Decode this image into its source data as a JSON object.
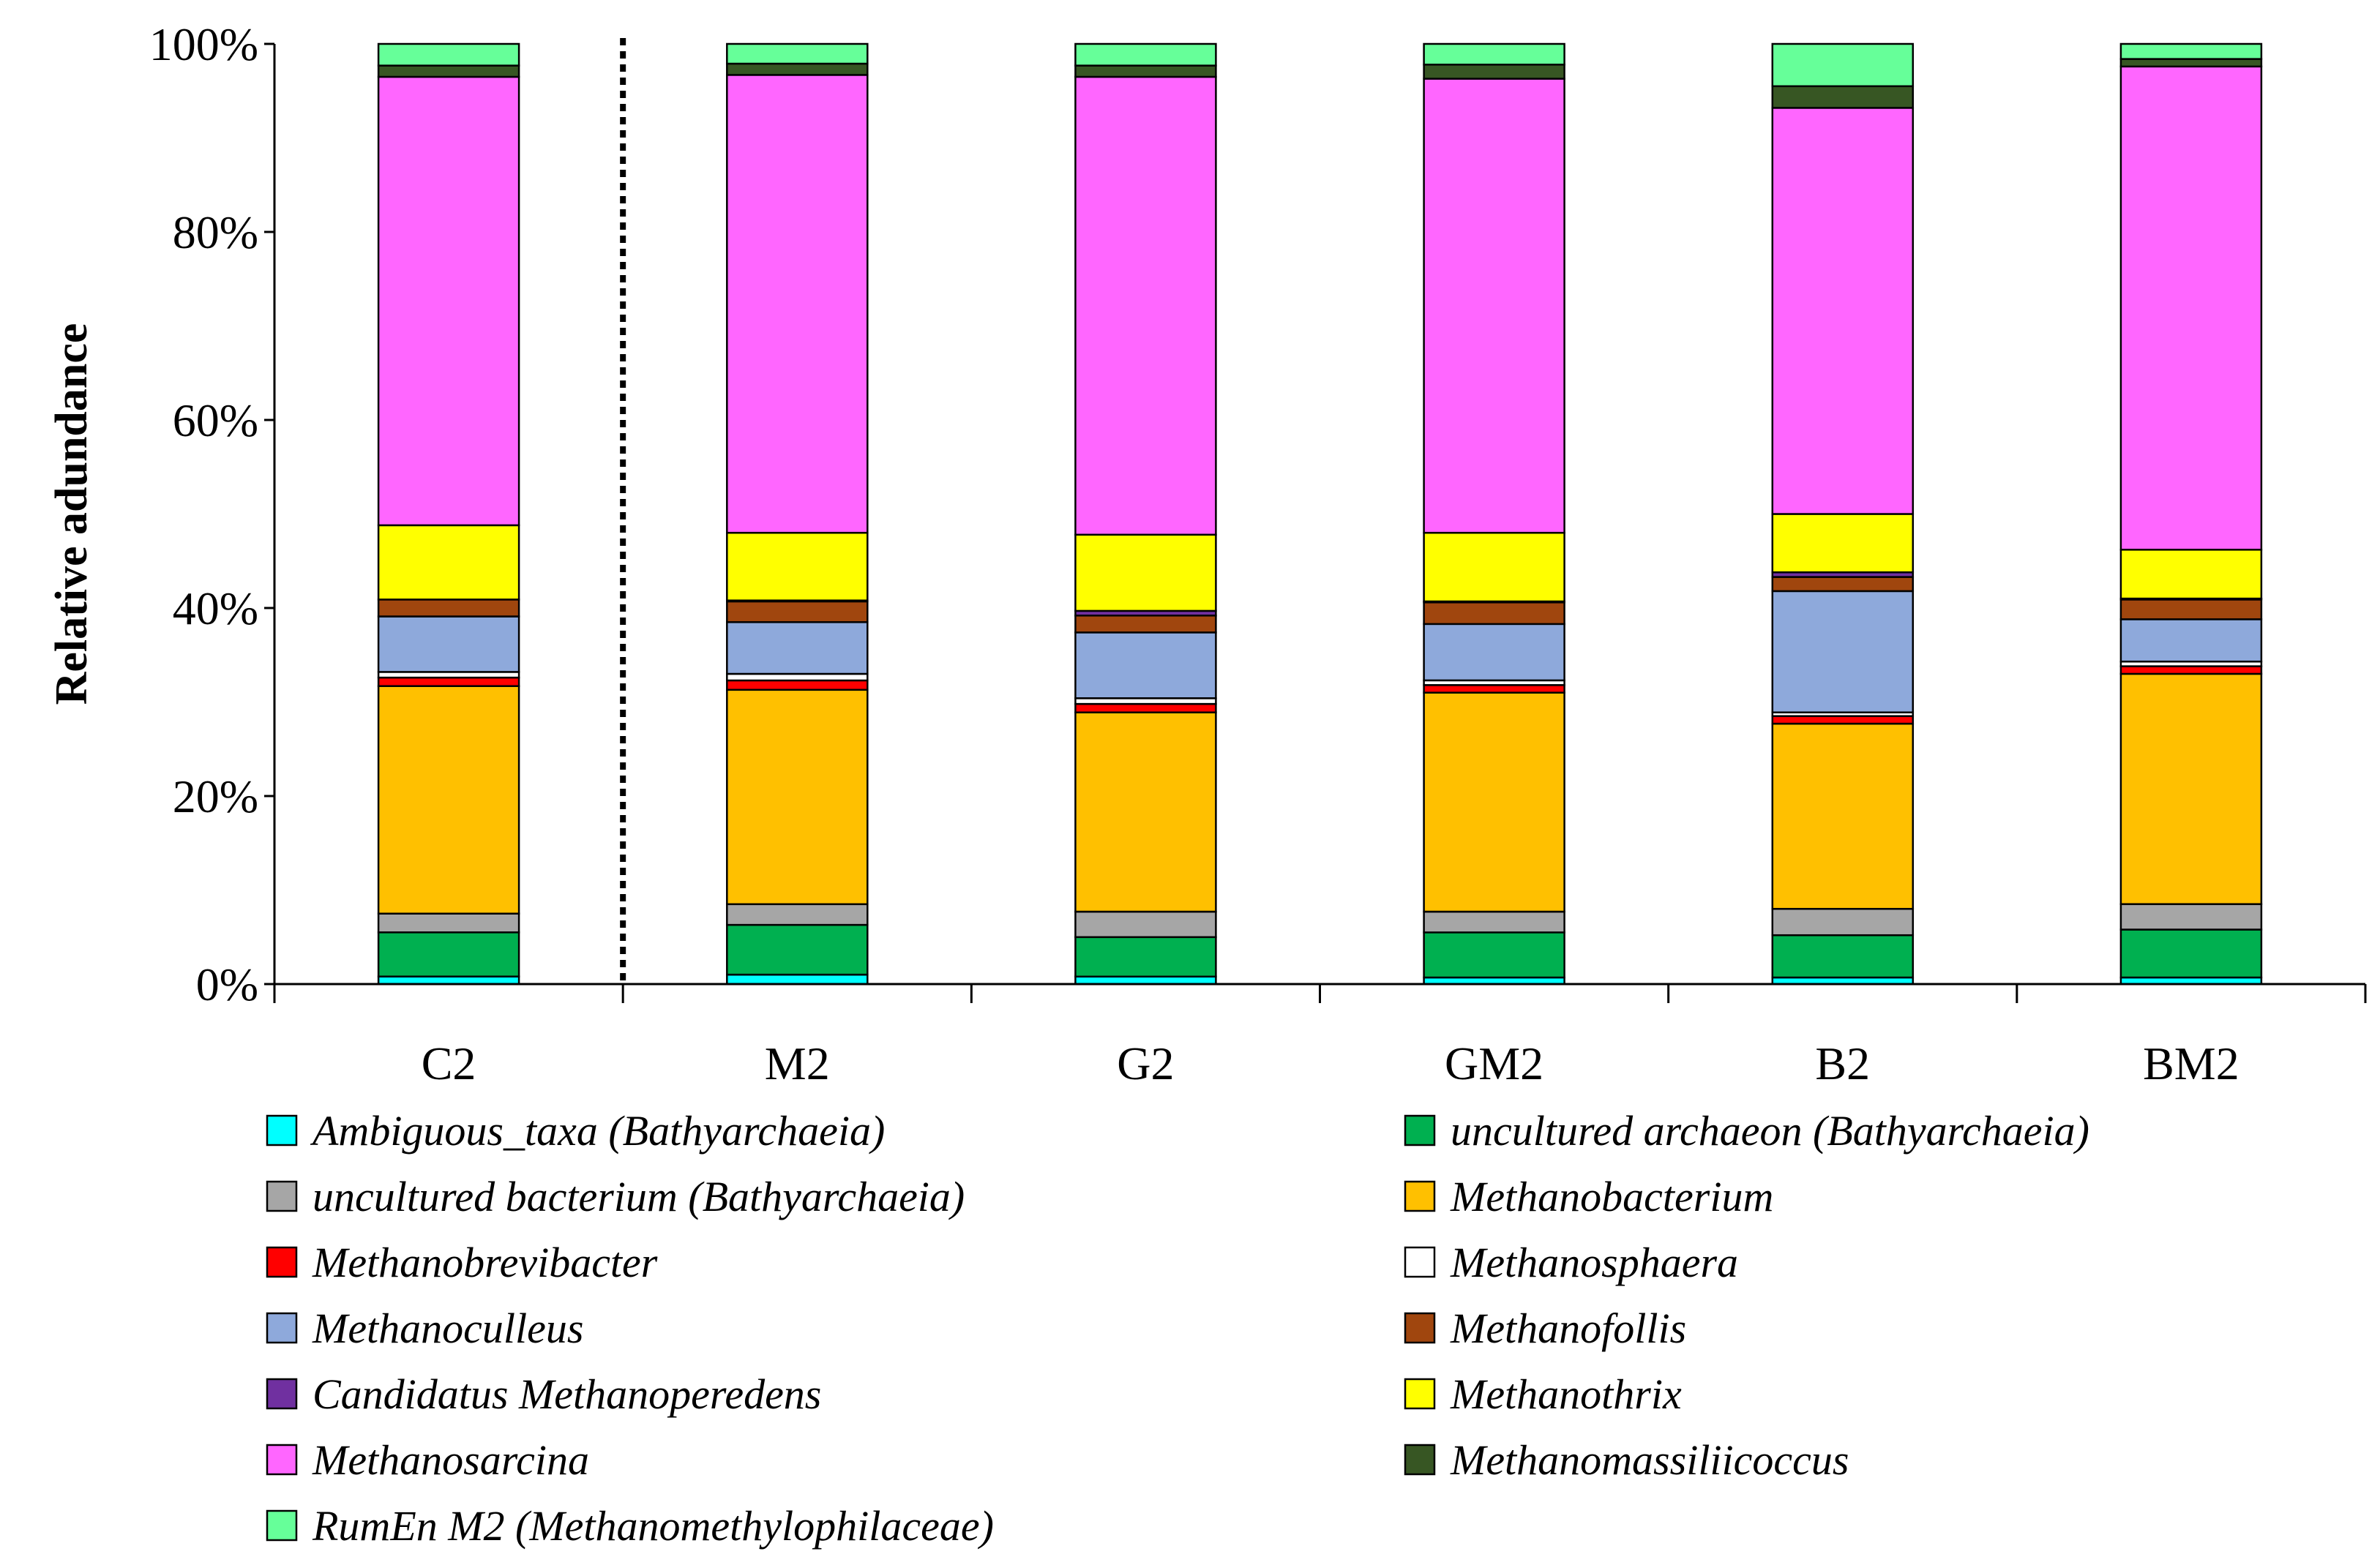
{
  "chart_data": {
    "type": "bar",
    "stacked": true,
    "normalized": true,
    "title": "",
    "xlabel": "",
    "ylabel": "Relative adundance",
    "ylim": [
      0,
      100
    ],
    "yticks": [
      "0%",
      "20%",
      "40%",
      "60%",
      "80%",
      "100%"
    ],
    "categories": [
      "C2",
      "M2",
      "G2",
      "GM2",
      "B2",
      "BM2"
    ],
    "separator_after_category": "C2",
    "legend_position": "bottom",
    "series": [
      {
        "name": "Ambiguous_taxa (Bathyarchaeia)",
        "color": "#00FFFF",
        "values": [
          0.8,
          1.0,
          0.8,
          0.7,
          0.7,
          0.7
        ]
      },
      {
        "name": "uncultured archaeon (Bathyarchaeia)",
        "color": "#00B050",
        "values": [
          4.7,
          5.3,
          4.2,
          4.8,
          4.5,
          5.1
        ]
      },
      {
        "name": "uncultured bacterium (Bathyarchaeia)",
        "color": "#A6A6A6",
        "values": [
          2.0,
          2.2,
          2.7,
          2.2,
          2.8,
          2.7
        ]
      },
      {
        "name": "Methanobacterium",
        "color": "#FFC000",
        "values": [
          24.2,
          22.8,
          21.2,
          23.3,
          19.7,
          24.5
        ]
      },
      {
        "name": "Methanobrevibacter",
        "color": "#FF0000",
        "values": [
          0.9,
          1.0,
          0.9,
          0.8,
          0.8,
          0.8
        ]
      },
      {
        "name": "Methanosphaera",
        "color": "#FFFFFF",
        "values": [
          0.6,
          0.7,
          0.6,
          0.5,
          0.4,
          0.5
        ]
      },
      {
        "name": "Methanoculleus",
        "color": "#8EA9DB",
        "values": [
          5.9,
          5.5,
          7.0,
          6.0,
          12.9,
          4.5
        ]
      },
      {
        "name": "Methanofollis",
        "color": "#A0460E",
        "values": [
          1.8,
          2.2,
          1.8,
          2.3,
          1.5,
          2.1
        ]
      },
      {
        "name": "Candidatus Methanoperedens",
        "color": "#7030A0",
        "values": [
          0.0,
          0.1,
          0.5,
          0.1,
          0.5,
          0.1
        ]
      },
      {
        "name": "Methanothrix",
        "color": "#FFFF00",
        "values": [
          7.9,
          7.2,
          8.1,
          7.3,
          6.2,
          5.2
        ]
      },
      {
        "name": "Methanosarcina",
        "color": "#FF66FF",
        "values": [
          47.7,
          48.7,
          48.7,
          48.3,
          43.2,
          51.4
        ]
      },
      {
        "name": "Methanomassiliicoccus",
        "color": "#375623",
        "values": [
          1.2,
          1.2,
          1.2,
          1.5,
          2.3,
          0.8
        ]
      },
      {
        "name": "RumEn M2 (Methanomethylophilaceae)",
        "color": "#66FF99",
        "values": [
          2.3,
          2.1,
          2.3,
          2.2,
          4.5,
          1.6
        ]
      }
    ]
  }
}
